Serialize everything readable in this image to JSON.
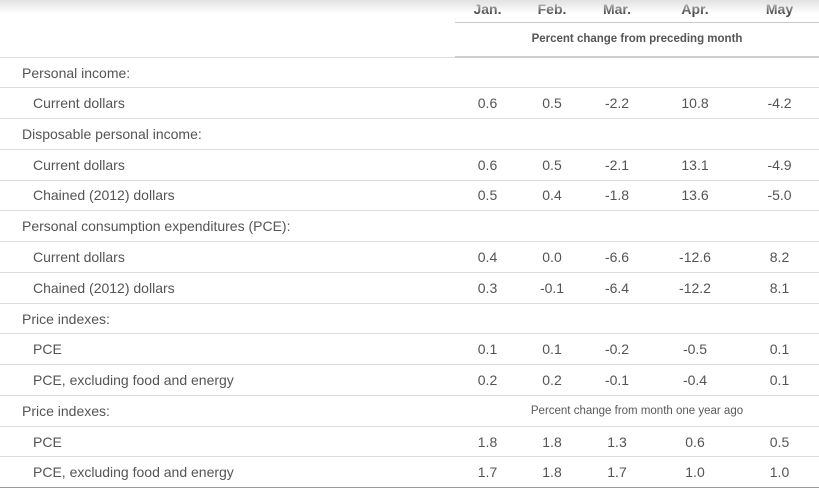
{
  "chart_data": {
    "type": "table",
    "columns": [
      "Jan.",
      "Feb.",
      "Mar.",
      "Apr.",
      "May"
    ],
    "header_note": "Percent change from preceding month",
    "rows": [
      {
        "type": "section",
        "label": "Personal income:"
      },
      {
        "type": "data",
        "label": "Current dollars",
        "values": [
          "0.6",
          "0.5",
          "-2.2",
          "10.8",
          "-4.2"
        ]
      },
      {
        "type": "section",
        "label": "Disposable personal income:"
      },
      {
        "type": "data",
        "label": "Current dollars",
        "values": [
          "0.6",
          "0.5",
          "-2.1",
          "13.1",
          "-4.9"
        ]
      },
      {
        "type": "data",
        "label": "Chained (2012) dollars",
        "values": [
          "0.5",
          "0.4",
          "-1.8",
          "13.6",
          "-5.0"
        ]
      },
      {
        "type": "section",
        "label": "Personal consumption expenditures (PCE):"
      },
      {
        "type": "data",
        "label": "Current dollars",
        "values": [
          "0.4",
          "0.0",
          "-6.6",
          "-12.6",
          "8.2"
        ]
      },
      {
        "type": "data",
        "label": "Chained (2012) dollars",
        "values": [
          "0.3",
          "-0.1",
          "-6.4",
          "-12.2",
          "8.1"
        ]
      },
      {
        "type": "section",
        "label": "Price indexes:"
      },
      {
        "type": "data",
        "label": "PCE",
        "values": [
          "0.1",
          "0.1",
          "-0.2",
          "-0.5",
          "0.1"
        ]
      },
      {
        "type": "data",
        "label": "PCE, excluding food and energy",
        "values": [
          "0.2",
          "0.2",
          "-0.1",
          "-0.4",
          "0.1"
        ]
      },
      {
        "type": "section",
        "label": "Price indexes:",
        "note": "Percent change from month one year ago"
      },
      {
        "type": "data",
        "label": "PCE",
        "values": [
          "1.8",
          "1.8",
          "1.3",
          "0.6",
          "0.5"
        ]
      },
      {
        "type": "data",
        "label": "PCE, excluding food and energy",
        "values": [
          "1.7",
          "1.8",
          "1.7",
          "1.0",
          "1.0"
        ]
      }
    ]
  },
  "colors": {
    "text": "#545454",
    "column_header_text": "#474747",
    "row_separator": "#dcdcdc",
    "header_rule": "#cfcfcf",
    "bottom_rule": "#9a9a9a",
    "top_shade": "#e2e2e2"
  }
}
